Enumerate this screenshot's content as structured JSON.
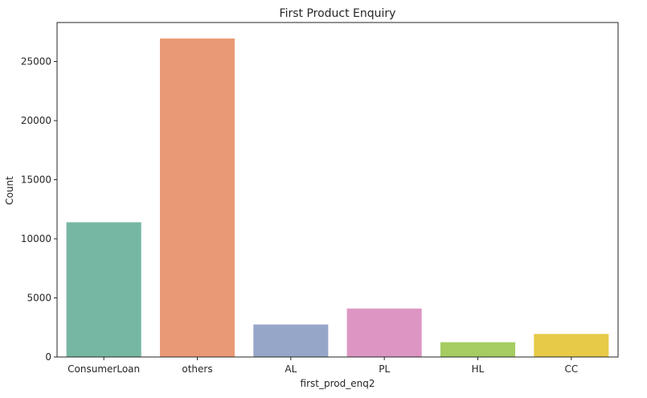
{
  "chart_data": {
    "type": "bar",
    "title": "First Product Enquiry",
    "xlabel": "first_prod_enq2",
    "ylabel": "Count",
    "categories": [
      "ConsumerLoan",
      "others",
      "AL",
      "PL",
      "HL",
      "CC"
    ],
    "values": [
      11400,
      26950,
      2750,
      4100,
      1250,
      1950
    ],
    "colors": [
      "#76b7a3",
      "#e99a74",
      "#96a6c8",
      "#dd96c3",
      "#a5cd62",
      "#e6ca48"
    ],
    "ylim": [
      0,
      28300
    ],
    "yticks": [
      0,
      5000,
      10000,
      15000,
      20000,
      25000
    ],
    "ytick_labels": [
      "0",
      "5000",
      "10000",
      "15000",
      "20000",
      "25000"
    ],
    "grid": false,
    "legend": "none"
  }
}
